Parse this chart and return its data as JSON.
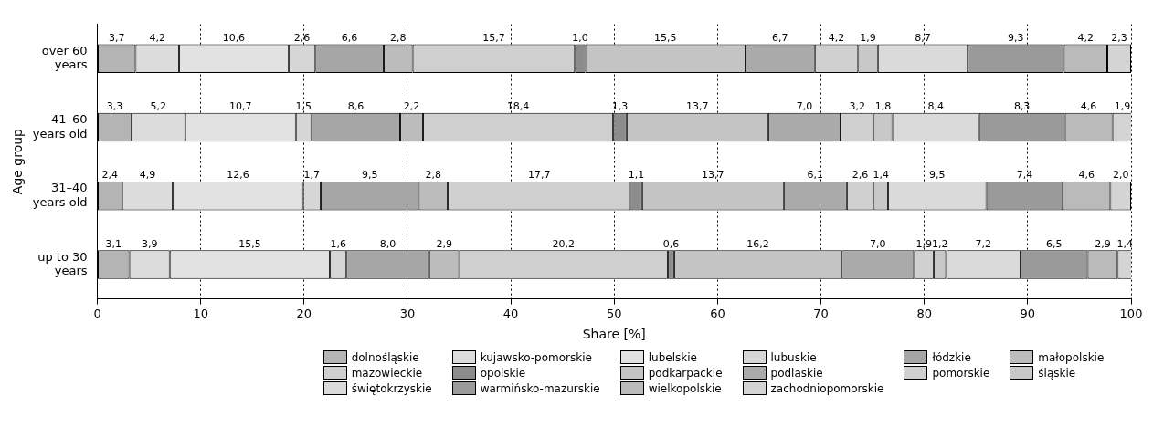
{
  "chart_data": {
    "type": "bar",
    "orientation": "horizontal",
    "stacked": true,
    "xlabel": "Share [%]",
    "ylabel": "Age group",
    "categories": [
      "over 60 years",
      "41–60 years old",
      "31–40 years old",
      "up to 30 years"
    ],
    "xlim": [
      0,
      100
    ],
    "xticks": [
      0,
      10,
      20,
      30,
      40,
      50,
      60,
      70,
      80,
      90,
      100
    ],
    "grid": "x",
    "legend": "bottom",
    "series": [
      {
        "name": "dolnośląskie",
        "color": "#b4b4b4",
        "values": [
          3.7,
          3.3,
          2.4,
          3.1
        ],
        "value_labels": [
          "3,7",
          "3,3",
          "2,4",
          "3,1"
        ]
      },
      {
        "name": "kujawsko-pomorskie",
        "color": "#dcdcdc",
        "values": [
          4.2,
          5.2,
          4.9,
          3.9
        ],
        "value_labels": [
          "4,2",
          "5,2",
          "4,9",
          "3,9"
        ]
      },
      {
        "name": "lubelskie",
        "color": "#e2e2e2",
        "values": [
          10.6,
          10.7,
          12.6,
          15.5
        ],
        "value_labels": [
          "10,6",
          "10,7",
          "12,6",
          "15,5"
        ]
      },
      {
        "name": "lubuskie",
        "color": "#d6d6d6",
        "values": [
          2.6,
          1.5,
          1.7,
          1.6
        ],
        "value_labels": [
          "2,6",
          "1,5",
          "1,7",
          "1,6"
        ]
      },
      {
        "name": "łódzkie",
        "color": "#a6a6a6",
        "values": [
          6.6,
          8.6,
          9.5,
          8.0
        ],
        "value_labels": [
          "6,6",
          "8,6",
          "9,5",
          "8,0"
        ]
      },
      {
        "name": "małopolskie",
        "color": "#bcbcbc",
        "values": [
          2.8,
          2.2,
          2.8,
          2.9
        ],
        "value_labels": [
          "2,8",
          "2,2",
          "2,8",
          "2,9"
        ]
      },
      {
        "name": "mazowieckie",
        "color": "#cfcfcf",
        "values": [
          15.7,
          18.4,
          17.7,
          20.2
        ],
        "value_labels": [
          "15,7",
          "18,4",
          "17,7",
          "20,2"
        ]
      },
      {
        "name": "opolskie",
        "color": "#8c8c8c",
        "values": [
          1.0,
          1.3,
          1.1,
          0.6
        ],
        "value_labels": [
          "1,0",
          "1,3",
          "1,1",
          "0,6"
        ]
      },
      {
        "name": "podkarpackie",
        "color": "#c4c4c4",
        "values": [
          15.5,
          13.7,
          13.7,
          16.2
        ],
        "value_labels": [
          "15,5",
          "13,7",
          "13,7",
          "16,2"
        ]
      },
      {
        "name": "podlaskie",
        "color": "#aaaaaa",
        "values": [
          6.7,
          7.0,
          6.1,
          7.0
        ],
        "value_labels": [
          "6,7",
          "7,0",
          "6,1",
          "7,0"
        ]
      },
      {
        "name": "pomorskie",
        "color": "#d0d0d0",
        "values": [
          4.2,
          3.2,
          2.6,
          1.9
        ],
        "value_labels": [
          "4,2",
          "3,2",
          "2,6",
          "1,9"
        ]
      },
      {
        "name": "śląskie",
        "color": "#c8c8c8",
        "values": [
          1.9,
          1.8,
          1.4,
          1.2
        ],
        "value_labels": [
          "1,9",
          "1,8",
          "1,4",
          "1,2"
        ]
      },
      {
        "name": "świętokrzyskie",
        "color": "#dadada",
        "values": [
          8.7,
          8.4,
          9.5,
          7.2
        ],
        "value_labels": [
          "8,7",
          "8,4",
          "9,5",
          "7,2"
        ]
      },
      {
        "name": "warmińsko-mazurskie",
        "color": "#9a9a9a",
        "values": [
          9.3,
          8.3,
          7.4,
          6.5
        ],
        "value_labels": [
          "9,3",
          "8,3",
          "7,4",
          "6,5"
        ]
      },
      {
        "name": "wielkopolskie",
        "color": "#bababa",
        "values": [
          4.2,
          4.6,
          4.6,
          2.9
        ],
        "value_labels": [
          "4,2",
          "4,6",
          "4,6",
          "2,9"
        ]
      },
      {
        "name": "zachodniopomorskie",
        "color": "#d4d4d4",
        "values": [
          2.3,
          1.9,
          2.0,
          1.4
        ],
        "value_labels": [
          "2,3",
          "1,9",
          "2,0",
          "1,4"
        ]
      }
    ]
  }
}
